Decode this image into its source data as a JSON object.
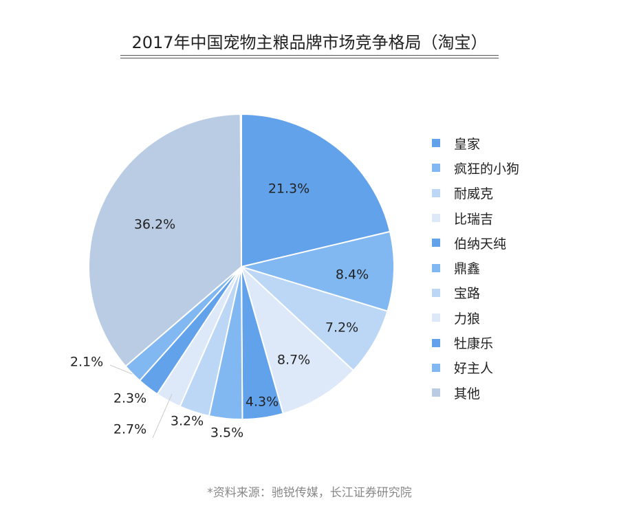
{
  "chart_data": {
    "type": "pie",
    "title": "2017年中国宠物主粮品牌市场竞争格局（淘宝）",
    "unit": "%",
    "legend_position": "right",
    "categories": [
      "皇家",
      "疯狂的小狗",
      "耐威克",
      "比瑞吉",
      "伯纳天纯",
      "鼎鑫",
      "宝路",
      "力狼",
      "牡康乐",
      "好主人",
      "其他"
    ],
    "values": [
      21.3,
      8.4,
      7.2,
      8.7,
      4.3,
      3.5,
      3.2,
      2.7,
      2.3,
      2.1,
      36.2
    ],
    "labels": [
      "21.3%",
      "8.4%",
      "7.2%",
      "8.7%",
      "4.3%",
      "3.5%",
      "3.2%",
      "2.7%",
      "2.3%",
      "2.1%",
      "36.2%"
    ],
    "colors": [
      "#62a2ea",
      "#82b8f1",
      "#bcd7f6",
      "#dde9f8",
      "#62a2ea",
      "#82b8f1",
      "#bcd7f6",
      "#dde9f8",
      "#62a2ea",
      "#82b8f1",
      "#b9cce4"
    ]
  },
  "source": "*资料来源：驰锐传媒，长江证券研究院"
}
